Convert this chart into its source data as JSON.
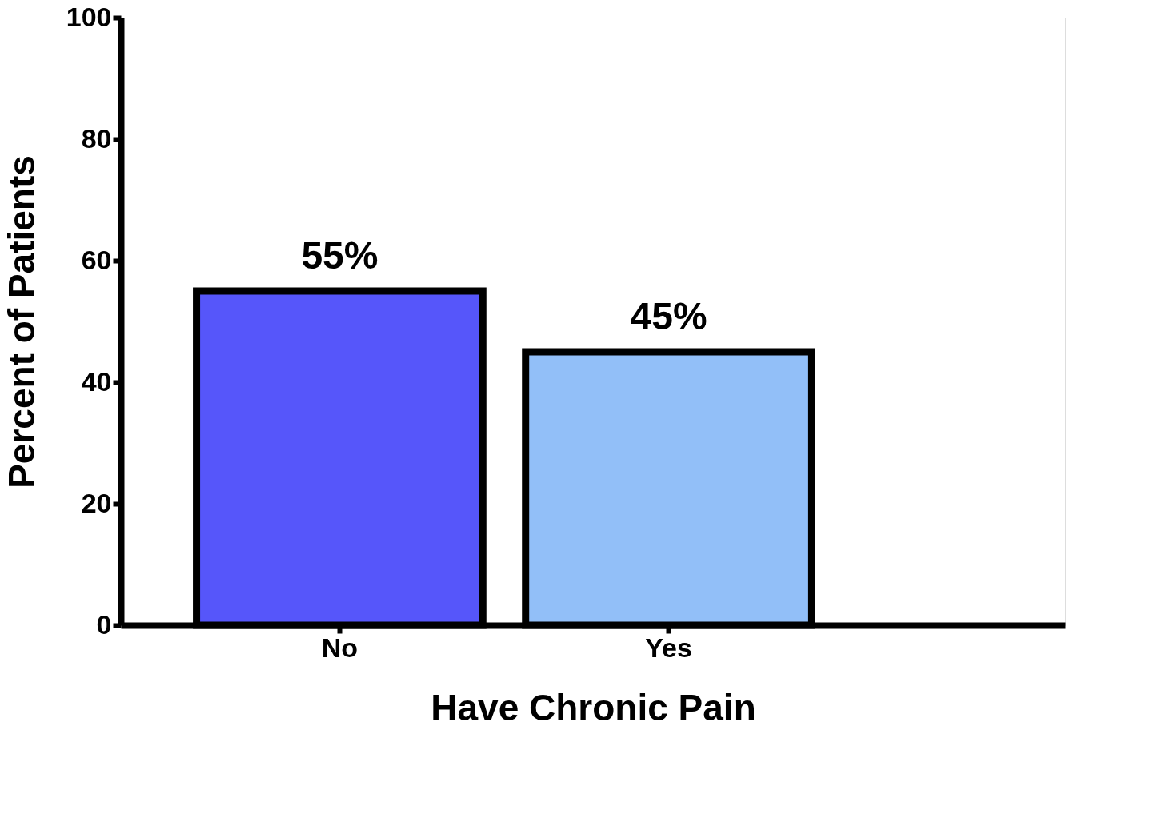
{
  "chart_data": {
    "type": "bar",
    "xlabel": "Have Chronic Pain",
    "ylabel": "Percent of Patients",
    "categories": [
      "No",
      "Yes"
    ],
    "values": [
      55,
      45
    ],
    "colors": [
      "#5656fa",
      "#92bff8"
    ],
    "value_labels": [
      "55%",
      "45%"
    ],
    "ylim": [
      0,
      100
    ],
    "yticks": [
      0,
      20,
      40,
      60,
      80,
      100
    ],
    "grid": false
  }
}
